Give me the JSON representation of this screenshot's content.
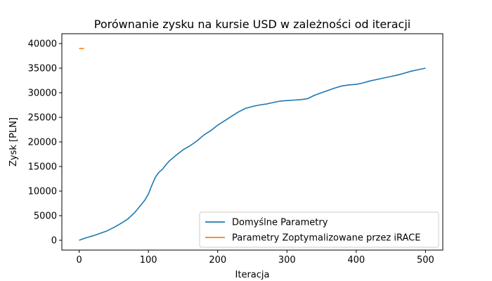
{
  "chart_data": {
    "type": "line",
    "title": "Porównanie zysku na kursie USD w zależności od iteracji",
    "xlabel": "Iteracja",
    "ylabel": "Zysk [PLN]",
    "xlim": [
      -25,
      525
    ],
    "ylim": [
      -2000,
      42000
    ],
    "xticks": [
      0,
      100,
      200,
      300,
      400,
      500
    ],
    "yticks": [
      0,
      5000,
      10000,
      15000,
      20000,
      25000,
      30000,
      35000,
      40000
    ],
    "grid": false,
    "legend_position": "lower-right",
    "series": [
      {
        "name": "Domyślne Parametry",
        "color": "#1f77b4",
        "x": [
          0,
          10,
          20,
          30,
          40,
          50,
          60,
          70,
          80,
          90,
          95,
          100,
          105,
          110,
          115,
          120,
          125,
          130,
          140,
          150,
          160,
          170,
          180,
          190,
          200,
          210,
          220,
          230,
          240,
          250,
          260,
          270,
          280,
          290,
          300,
          310,
          320,
          330,
          340,
          350,
          360,
          370,
          380,
          390,
          400,
          410,
          420,
          430,
          440,
          450,
          460,
          470,
          480,
          490,
          500
        ],
        "y": [
          0,
          500,
          900,
          1400,
          1900,
          2600,
          3400,
          4300,
          5600,
          7300,
          8200,
          9400,
          11200,
          12800,
          13800,
          14400,
          15300,
          16100,
          17300,
          18400,
          19200,
          20200,
          21400,
          22300,
          23400,
          24300,
          25200,
          26100,
          26800,
          27200,
          27500,
          27700,
          28000,
          28300,
          28400,
          28500,
          28600,
          28800,
          29500,
          30000,
          30500,
          31000,
          31400,
          31600,
          31700,
          32000,
          32400,
          32700,
          33000,
          33300,
          33600,
          34000,
          34400,
          34700,
          35000
        ]
      },
      {
        "name": "Parametry Zoptymalizowane przez iRACE",
        "color": "#ff7f0e",
        "x": [
          0,
          7
        ],
        "y": [
          39000,
          39000
        ]
      }
    ]
  }
}
